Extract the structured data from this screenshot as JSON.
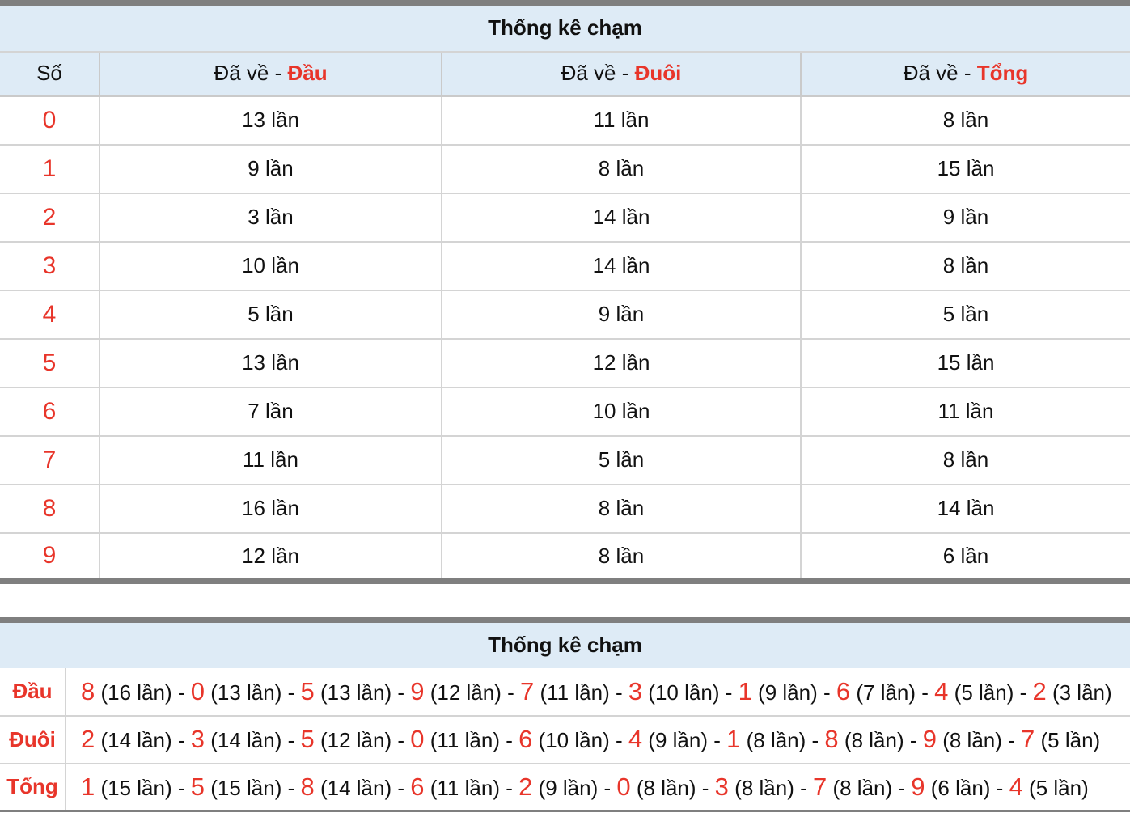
{
  "table1": {
    "title": "Thống kê chạm",
    "headers": {
      "so": "Số",
      "dau_prefix": "Đã về - ",
      "dau": "Đầu",
      "duoi_prefix": "Đã về - ",
      "duoi": "Đuôi",
      "tong_prefix": "Đã về - ",
      "tong": "Tổng"
    },
    "rows": [
      {
        "so": "0",
        "dau": "13 lần",
        "duoi": "11 lần",
        "tong": "8 lần"
      },
      {
        "so": "1",
        "dau": "9 lần",
        "duoi": "8 lần",
        "tong": "15 lần"
      },
      {
        "so": "2",
        "dau": "3 lần",
        "duoi": "14 lần",
        "tong": "9 lần"
      },
      {
        "so": "3",
        "dau": "10 lần",
        "duoi": "14 lần",
        "tong": "8 lần"
      },
      {
        "so": "4",
        "dau": "5 lần",
        "duoi": "9 lần",
        "tong": "5 lần"
      },
      {
        "so": "5",
        "dau": "13 lần",
        "duoi": "12 lần",
        "tong": "15 lần"
      },
      {
        "so": "6",
        "dau": "7 lần",
        "duoi": "10 lần",
        "tong": "11 lần"
      },
      {
        "so": "7",
        "dau": "11 lần",
        "duoi": "5 lần",
        "tong": "8 lần"
      },
      {
        "so": "8",
        "dau": "16 lần",
        "duoi": "8 lần",
        "tong": "14 lần"
      },
      {
        "so": "9",
        "dau": "12 lần",
        "duoi": "8 lần",
        "tong": "6 lần"
      }
    ]
  },
  "table2": {
    "title": "Thống kê chạm",
    "rows": [
      {
        "label": "Đầu",
        "items": [
          [
            "8",
            "16 lần"
          ],
          [
            "0",
            "13 lần"
          ],
          [
            "5",
            "13 lần"
          ],
          [
            "9",
            "12 lần"
          ],
          [
            "7",
            "11 lần"
          ],
          [
            "3",
            "10 lần"
          ],
          [
            "1",
            "9 lần"
          ],
          [
            "6",
            "7 lần"
          ],
          [
            "4",
            "5 lần"
          ],
          [
            "2",
            "3 lần"
          ]
        ]
      },
      {
        "label": "Đuôi",
        "items": [
          [
            "2",
            "14 lần"
          ],
          [
            "3",
            "14 lần"
          ],
          [
            "5",
            "12 lần"
          ],
          [
            "0",
            "11 lần"
          ],
          [
            "6",
            "10 lần"
          ],
          [
            "4",
            "9 lần"
          ],
          [
            "1",
            "8 lần"
          ],
          [
            "8",
            "8 lần"
          ],
          [
            "9",
            "8 lần"
          ],
          [
            "7",
            "5 lần"
          ]
        ]
      },
      {
        "label": "Tổng",
        "items": [
          [
            "1",
            "15 lần"
          ],
          [
            "5",
            "15 lần"
          ],
          [
            "8",
            "14 lần"
          ],
          [
            "6",
            "11 lần"
          ],
          [
            "2",
            "9 lần"
          ],
          [
            "0",
            "8 lần"
          ],
          [
            "3",
            "8 lần"
          ],
          [
            "7",
            "8 lần"
          ],
          [
            "9",
            "6 lần"
          ],
          [
            "4",
            "5 lần"
          ]
        ]
      }
    ]
  },
  "colors": {
    "accent": "#e8352a",
    "header_bg": "#deebf6",
    "border": "#7f7f7f"
  }
}
